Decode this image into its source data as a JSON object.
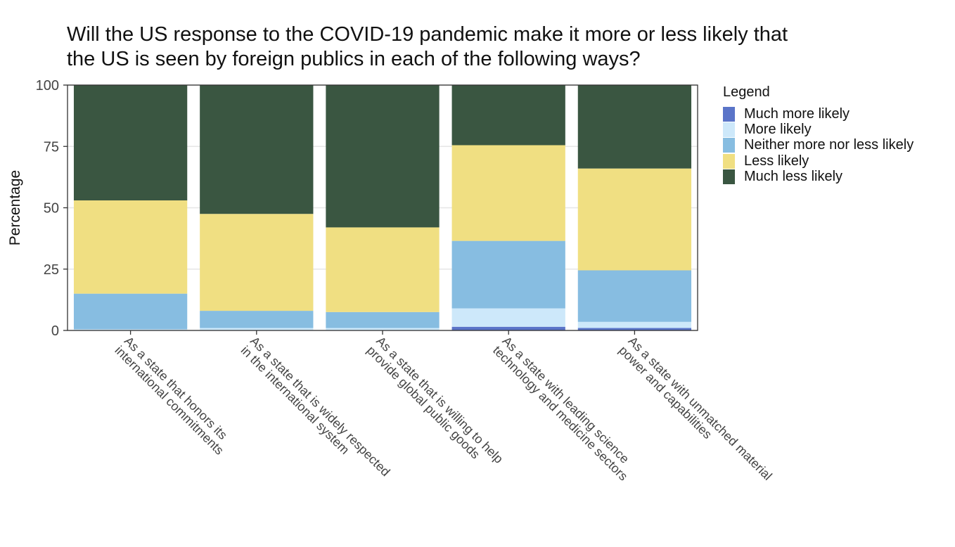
{
  "title_lines": [
    "Will the US response to the COVID-19 pandemic make it more or less likely that",
    "the US is seen by foreign publics in each of the following ways?"
  ],
  "chart_data": {
    "type": "bar",
    "stacked": true,
    "ylabel": "Percentage",
    "xlabel": "",
    "ylim": [
      0,
      100
    ],
    "yticks": [
      0,
      25,
      50,
      75,
      100
    ],
    "grid": true,
    "legend_position": "right",
    "legend_title": "Legend",
    "categories": [
      [
        "As a state that honors its",
        "international commitments"
      ],
      [
        "As a state that is widely respected",
        "in the international system"
      ],
      [
        "As a state that is willing to help",
        "provide global public goods"
      ],
      [
        "As a state with leading science",
        "technology and medicine sectors"
      ],
      [
        "As a state with unmatched material",
        "power and capabilities"
      ]
    ],
    "series": [
      {
        "name": "Much more likely",
        "color": "#5a74c8",
        "values": [
          0,
          0,
          0,
          1.5,
          1
        ]
      },
      {
        "name": "More likely",
        "color": "#cde8fa",
        "values": [
          0.5,
          1,
          1,
          7.5,
          2.5
        ]
      },
      {
        "name": "Neither more nor less likely",
        "color": "#87bde1",
        "values": [
          14.5,
          7,
          6.5,
          27.5,
          21
        ]
      },
      {
        "name": "Less likely",
        "color": "#f0df82",
        "values": [
          38,
          39.5,
          34.5,
          39,
          41.5
        ]
      },
      {
        "name": "Much less likely",
        "color": "#3a5641",
        "values": [
          47,
          52.5,
          58,
          24.5,
          34
        ]
      }
    ]
  }
}
